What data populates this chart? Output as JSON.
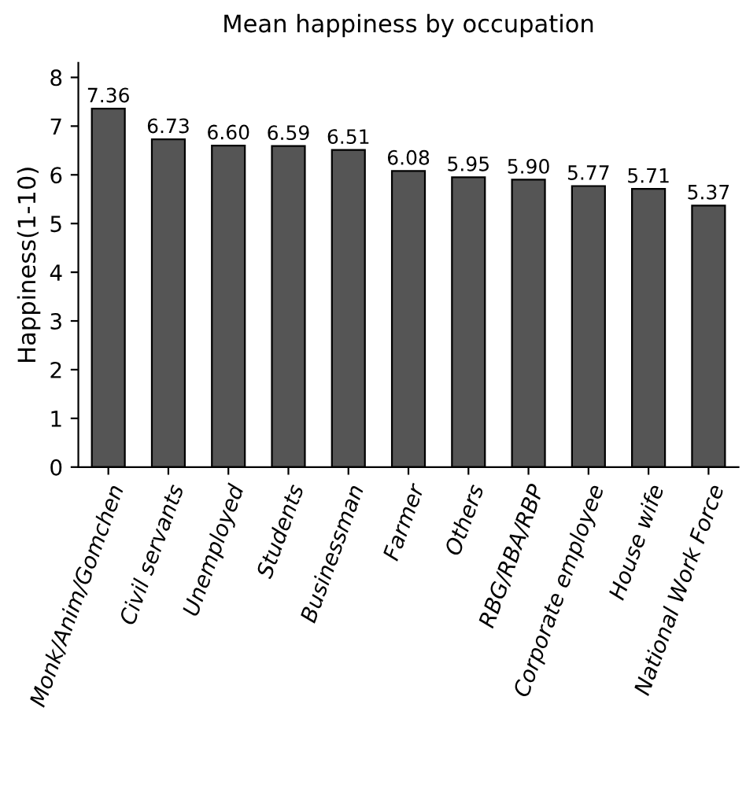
{
  "chart_data": {
    "type": "bar",
    "title": "Mean happiness by occupation",
    "ylabel": "Happiness(1-10)",
    "categories": [
      "Monk/Anim/Gomchen",
      "Civil servants",
      "Unemployed",
      "Students",
      "Businessman",
      "Farmer",
      "Others",
      "RBG/RBA/RBP",
      "Corporate employee",
      "House wife",
      "National Work Force"
    ],
    "values": [
      7.36,
      6.73,
      6.6,
      6.59,
      6.51,
      6.08,
      5.95,
      5.9,
      5.77,
      5.71,
      5.37
    ],
    "value_labels": [
      "7.36",
      "6.73",
      "6.60",
      "6.59",
      "6.51",
      "6.08",
      "5.95",
      "5.90",
      "5.77",
      "5.71",
      "5.37"
    ],
    "color": "#555555",
    "ylim": [
      0,
      8.3
    ],
    "yticks": [
      0,
      1,
      2,
      3,
      4,
      5,
      6,
      7,
      8
    ],
    "grid": false,
    "legend": false
  }
}
